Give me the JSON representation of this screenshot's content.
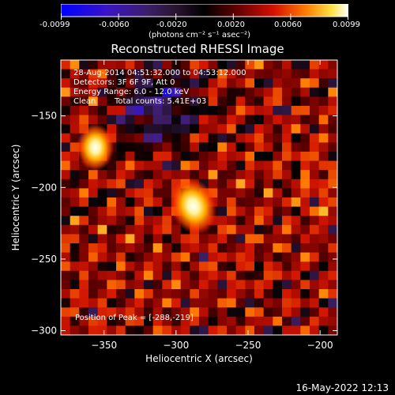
{
  "title": "Reconstructed RHESSI Image",
  "colorbar": {
    "ticks": [
      "-0.0099",
      "-0.0060",
      "-0.0020",
      "0.0020",
      "0.0060",
      "0.0099"
    ],
    "units": "(photons cm⁻² s⁻¹ asec⁻²)",
    "range": [
      -0.0099,
      0.0099
    ]
  },
  "info": {
    "time_range": "28-Aug-2014 04:51:32.000 to 04:53:12.000",
    "detectors": "Detectors: 3F 6F 9F, Att 0",
    "energy": "Energy Range: 6.0 - 12.0 keV",
    "algorithm": "Clean",
    "counts": "Total counts: 5.41E+03",
    "peak": "Position of Peak = [-288,-219]"
  },
  "footer": {
    "timestamp": "16-May-2022 12:13"
  },
  "chart_data": {
    "type": "heatmap",
    "title": "Reconstructed RHESSI Image",
    "xlabel": "Heliocentric X (arcsec)",
    "ylabel": "Heliocentric Y (arcsec)",
    "xlim": [
      -380,
      -188
    ],
    "ylim": [
      -303,
      -111
    ],
    "xticks": [
      -350,
      -300,
      -250,
      -200
    ],
    "yticks": [
      -150,
      -200,
      -250,
      -300
    ],
    "colormap": "RHESSI hot (blue-purple-red-yellow-white)",
    "peak": [
      -288,
      -219
    ],
    "sources": [
      {
        "x": -288,
        "y": -213,
        "relative_intensity": 1.0
      },
      {
        "x": -356,
        "y": -172,
        "relative_intensity": 0.75
      }
    ],
    "diffuse_background": "red/orange clean residual with purple low-value region in upper-left"
  },
  "colors": {
    "background": "#000000",
    "text": "#ffffff"
  }
}
